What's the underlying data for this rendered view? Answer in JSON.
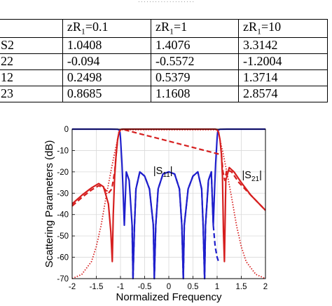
{
  "caption": {
    "text": "· · · · · · · · · · · · · · · · · · · ·"
  },
  "table": {
    "headers": [
      "",
      "zR",
      "zR",
      "zR"
    ],
    "header_sub": "1",
    "header_values": [
      "=0.1",
      "=1",
      "=10"
    ],
    "rows": [
      {
        "label": "S2",
        "values": [
          "1.0408",
          "1.4076",
          "3.3142"
        ]
      },
      {
        "label": "22",
        "values": [
          "-0.094",
          "-0.5572",
          "-1.2004"
        ]
      },
      {
        "label": "12",
        "values": [
          "0.2498",
          "0.5379",
          "1.3714"
        ]
      },
      {
        "label": "23",
        "values": [
          "0.8685",
          "1.1608",
          "2.8574"
        ]
      }
    ]
  },
  "chart_data": {
    "type": "line",
    "title": "",
    "xlabel": "Normalized Frequency",
    "ylabel": "Scattering Parameters (dB)",
    "xlim": [
      -2,
      2
    ],
    "ylim": [
      -70,
      0
    ],
    "xticks": [
      "-2",
      "-1.5",
      "-1",
      "-0.5",
      "0",
      "0.5",
      "1",
      "1.5",
      "2"
    ],
    "yticks": [
      "0",
      "-10",
      "-20",
      "-30",
      "-40",
      "-50",
      "-60",
      "-70"
    ],
    "grid": true,
    "annotations": [
      {
        "text": "|S11|",
        "x": -0.12,
        "y": -21,
        "color": "#000"
      },
      {
        "text": "|S21|",
        "x": 1.72,
        "y": -23,
        "color": "#000"
      }
    ],
    "series": [
      {
        "color": "#1f1fcc",
        "style": "solid",
        "x": [
          -2,
          -1.2,
          -1.06,
          -1.03,
          -1.01,
          -1.0,
          -0.99,
          -0.97,
          -0.95,
          -0.92,
          -0.88,
          -0.82,
          -0.76,
          -0.74,
          -0.71,
          -0.68,
          -0.6,
          -0.5,
          -0.4,
          -0.32,
          -0.3,
          -0.27,
          -0.22,
          -0.12,
          0,
          0.12,
          0.22,
          0.27,
          0.3,
          0.32,
          0.4,
          0.5,
          0.6,
          0.68,
          0.71,
          0.74,
          0.76,
          0.82,
          0.88,
          0.92,
          0.95,
          0.97,
          0.99,
          1.0,
          1.01,
          1.03,
          1.06,
          1.2,
          2
        ],
        "y": [
          0,
          0,
          -0.05,
          -0.3,
          -1.5,
          -4,
          -8,
          -16,
          -26,
          -45,
          -20,
          -24,
          -45,
          -70,
          -45,
          -28,
          -20,
          -22,
          -28,
          -45,
          -70,
          -45,
          -28,
          -21,
          -20,
          -21,
          -28,
          -45,
          -70,
          -45,
          -28,
          -22,
          -20,
          -28,
          -45,
          -70,
          -45,
          -24,
          -20,
          -45,
          -26,
          -16,
          -8,
          -4,
          -1.5,
          -0.3,
          -0.05,
          0,
          0
        ]
      },
      {
        "color": "#1f1fcc",
        "style": "dashed",
        "x": [
          -0.76,
          -0.74,
          -0.71,
          -0.68,
          -0.6,
          -0.5,
          -0.4,
          -0.32,
          -0.3,
          -0.27,
          -0.22,
          -0.12,
          0,
          0.12,
          0.22,
          0.27,
          0.3,
          0.32,
          0.4,
          0.5,
          0.6,
          0.68,
          0.71,
          0.74,
          0.76,
          0.82,
          0.88,
          0.92,
          0.96,
          1.0,
          1.03
        ],
        "y": [
          -45,
          -70,
          -45,
          -28,
          -20,
          -22,
          -28,
          -45,
          -70,
          -45,
          -28,
          -21,
          -20,
          -21,
          -28,
          -45,
          -70,
          -45,
          -28,
          -22,
          -20,
          -28,
          -45,
          -70,
          -45,
          -24,
          -20,
          -45,
          -55,
          -60,
          -62
        ]
      },
      {
        "color": "#d61f1f",
        "style": "solid",
        "x": [
          -2,
          -1.8,
          -1.6,
          -1.45,
          -1.35,
          -1.25,
          -1.2,
          -1.17,
          -1.15,
          -1.12,
          -1.09,
          -1.06,
          -1.03,
          -1.0,
          -0.98,
          -0.95,
          -0.9,
          -0.8,
          0.8,
          0.9,
          0.95,
          0.98,
          1.0,
          1.03,
          1.06,
          1.09,
          1.11,
          1.13,
          1.15,
          1.18,
          1.25,
          1.35,
          1.5,
          1.7,
          2
        ],
        "y": [
          -35,
          -31,
          -27.5,
          -25.5,
          -27,
          -35,
          -48,
          -62,
          -40,
          -22,
          -12,
          -5,
          -1.5,
          -0.3,
          -0.05,
          0,
          0,
          0,
          0,
          0,
          0,
          -0.05,
          -0.3,
          -1.5,
          -5,
          -12,
          -22,
          -48,
          -62,
          -24,
          -18,
          -20,
          -25,
          -31,
          -38
        ]
      },
      {
        "color": "#d61f1f",
        "style": "dashed",
        "x": [
          -2,
          -1.8,
          -1.6,
          -1.45,
          -1.35,
          -1.25,
          -1.18,
          -1.12,
          -1.09,
          -1.06,
          -1.03,
          -1.0,
          -0.97,
          1.09,
          1.12,
          1.16,
          1.2,
          1.3,
          1.45,
          1.7,
          2
        ],
        "y": [
          -36,
          -32,
          -28.5,
          -26.5,
          -27.5,
          -30,
          -28,
          -20,
          -12,
          -5,
          -1.5,
          -0.3,
          0,
          -12,
          -20,
          -24,
          -19,
          -20,
          -25,
          -31,
          -38
        ]
      },
      {
        "color": "#d61f1f",
        "style": "dotted",
        "x": [
          -2,
          -1.8,
          -1.6,
          -1.5,
          -1.4,
          -1.3,
          -1.2,
          -1.12,
          -1.06,
          -1.03,
          -1.0,
          1.0,
          1.03,
          1.06,
          1.12,
          1.2,
          1.3,
          1.4,
          1.5,
          1.6,
          1.8,
          2
        ],
        "y": [
          -70,
          -68,
          -62,
          -55,
          -45,
          -32,
          -20,
          -11,
          -5,
          -1.5,
          -0.3,
          -0.3,
          -1.5,
          -5,
          -11,
          -20,
          -32,
          -45,
          -55,
          -62,
          -68,
          -70
        ]
      }
    ]
  }
}
